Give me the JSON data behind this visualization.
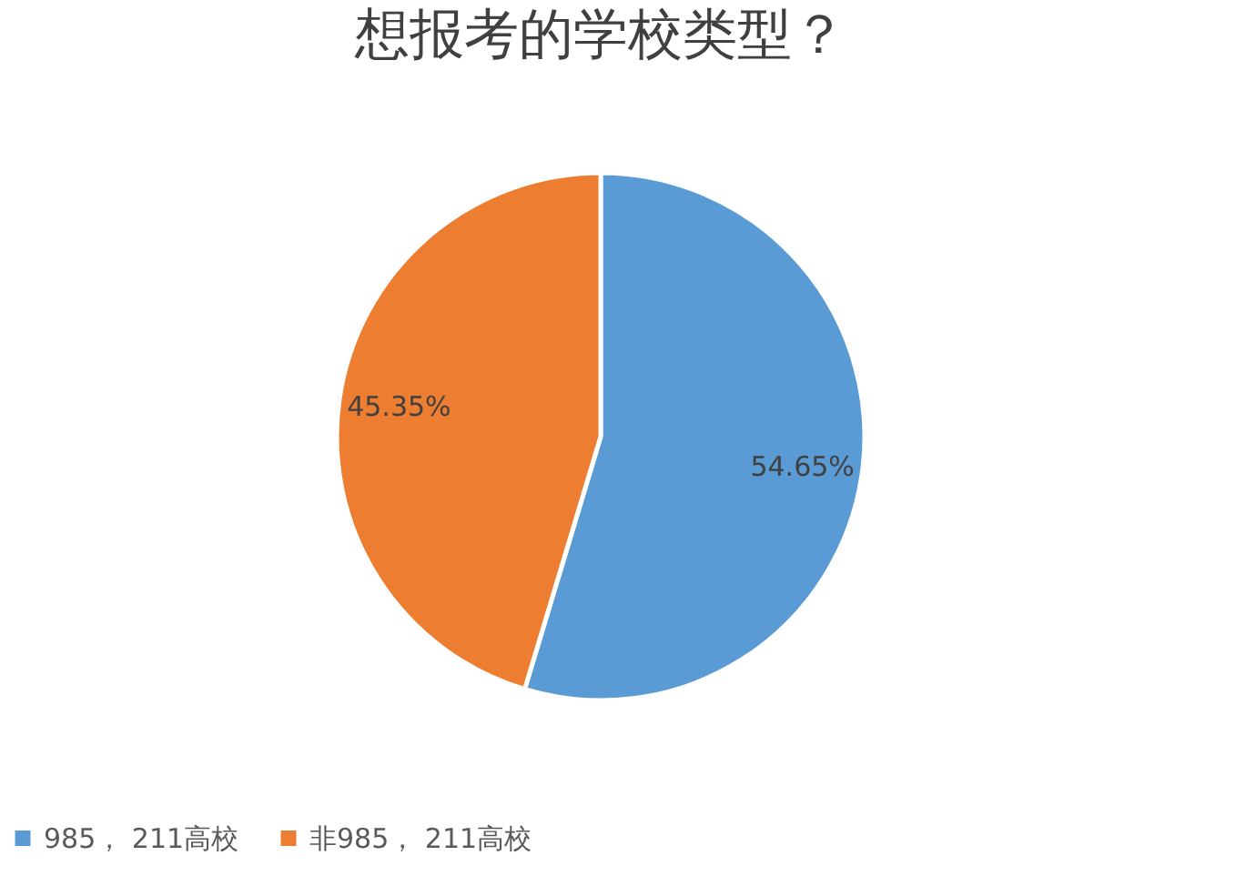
{
  "chart_data": {
    "type": "pie",
    "title": "想报考的学校类型？",
    "categories": [
      "985，  211高校",
      "非985，  211高校"
    ],
    "values": [
      54.65,
      45.35
    ],
    "colors": [
      "#5b9bd5",
      "#ed7d31"
    ],
    "value_labels": [
      "54.65%",
      "45.35%"
    ],
    "legend": "bottom"
  }
}
